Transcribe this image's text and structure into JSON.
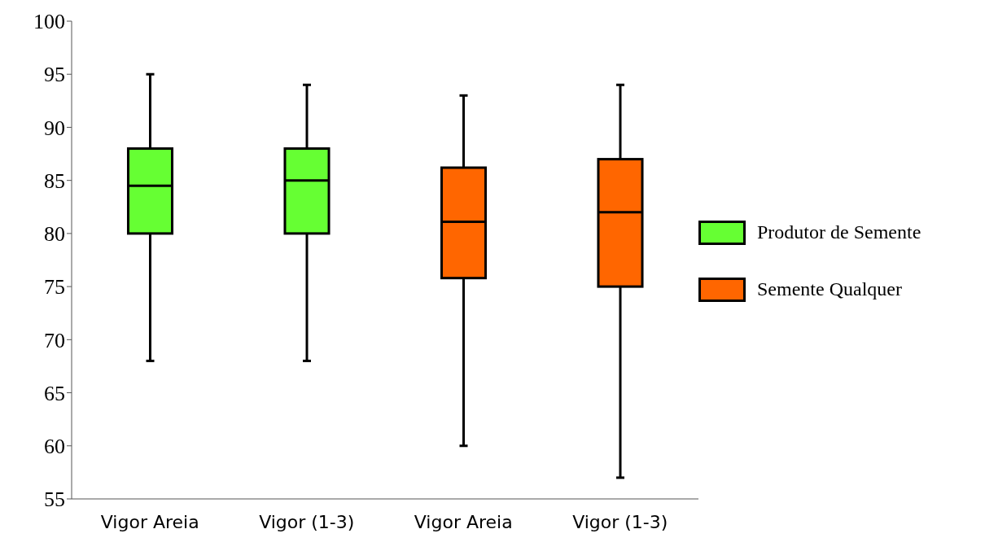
{
  "chart_data": {
    "type": "box",
    "categories": [
      "Vigor Areia",
      "Vigor (1-3)",
      "Vigor Areia",
      "Vigor (1-3)"
    ],
    "series": [
      {
        "name": "Produtor de Semente",
        "color": "#66ff33",
        "boxes": [
          {
            "low": 68,
            "q1": 80,
            "median": 84.5,
            "q3": 88,
            "high": 95
          },
          {
            "low": 68,
            "q1": 80,
            "median": 85,
            "q3": 88,
            "high": 94
          },
          null,
          null
        ]
      },
      {
        "name": "Semente Qualquer",
        "color": "#ff6600",
        "boxes": [
          null,
          null,
          {
            "low": 60,
            "q1": 75.8,
            "median": 81.1,
            "q3": 86.2,
            "high": 93
          },
          {
            "low": 57,
            "q1": 75,
            "median": 82,
            "q3": 87,
            "high": 94
          }
        ]
      }
    ],
    "ylim": [
      55,
      100
    ],
    "yticks": [
      55,
      60,
      65,
      70,
      75,
      80,
      85,
      90,
      95,
      100
    ],
    "grid": false,
    "legend": "right"
  }
}
